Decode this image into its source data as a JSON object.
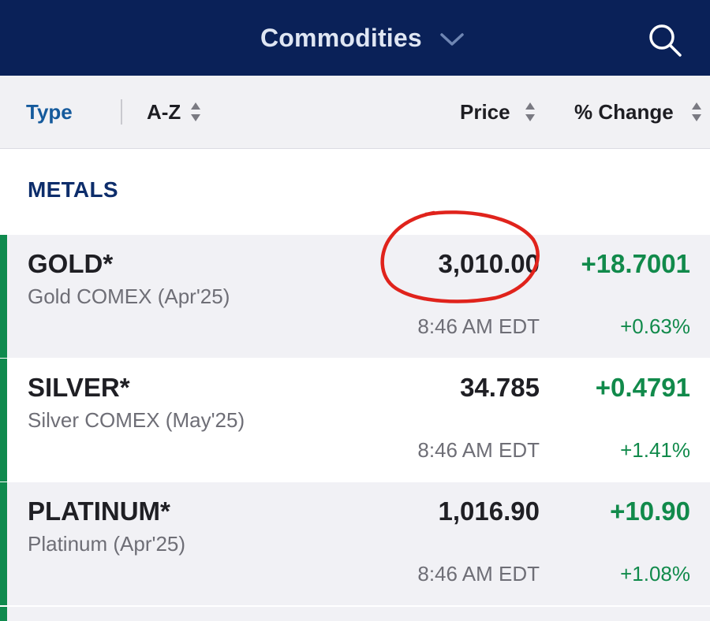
{
  "header": {
    "title": "Commodities",
    "chevron_icon": "chevron-down-icon",
    "search_icon": "search-icon"
  },
  "sortbar": {
    "type_label": "Type",
    "az_label": "A-Z",
    "price_label": "Price",
    "change_label": "% Change",
    "sort_icon": "sort-arrows-icon"
  },
  "section": {
    "title": "METALS"
  },
  "rows": [
    {
      "symbol": "GOLD*",
      "description": "Gold COMEX (Apr'25)",
      "price": "3,010.00",
      "time": "8:46 AM EDT",
      "change": "+18.7001",
      "percent": "+0.63%"
    },
    {
      "symbol": "SILVER*",
      "description": "Silver COMEX (May'25)",
      "price": "34.785",
      "time": "8:46 AM EDT",
      "change": "+0.4791",
      "percent": "+1.41%"
    },
    {
      "symbol": "PLATINUM*",
      "description": "Platinum (Apr'25)",
      "price": "1,016.90",
      "time": "8:46 AM EDT",
      "change": "+10.90",
      "percent": "+1.08%"
    }
  ],
  "colors": {
    "header_bg": "#0a2158",
    "accent_green": "#0f8a4e",
    "positive_text": "#118a4b",
    "link_blue": "#155a9c",
    "annotation_red": "#e0231c"
  },
  "annotation": {
    "shape": "hand-drawn-circle",
    "target": "GOLD* price"
  }
}
